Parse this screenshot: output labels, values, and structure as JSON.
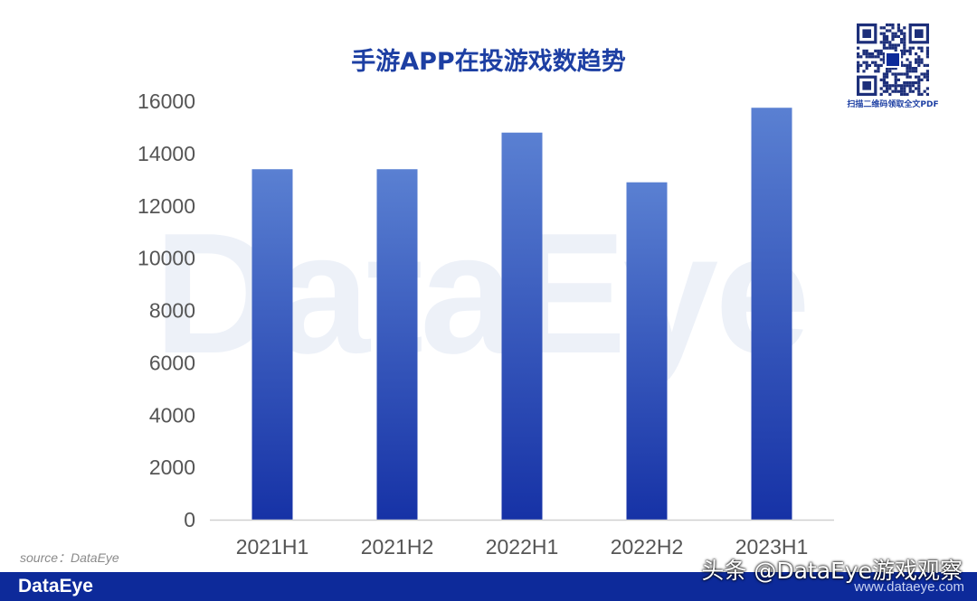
{
  "watermark_text": "DataEye",
  "qr": {
    "caption": "扫描二维码领取全文PDF"
  },
  "source_note": "source：DataEye",
  "footer": {
    "brand": "DataEye",
    "url": "www.dataeye.com"
  },
  "overlay_credit": "头条 @DataEye游戏观察",
  "colors": {
    "bar_top": "#5a80d2",
    "bar_bottom": "#1632a6",
    "title": "#1d3fa3",
    "footer_bg": "#0d2a9a"
  },
  "chart_data": {
    "type": "bar",
    "title": "手游APP在投游戏数趋势",
    "categories": [
      "2021H1",
      "2021H2",
      "2022H1",
      "2022H2",
      "2023H1"
    ],
    "values": [
      13400,
      13400,
      14800,
      12900,
      15750
    ],
    "ylim": [
      0,
      16000
    ],
    "yticks": [
      0,
      2000,
      4000,
      6000,
      8000,
      10000,
      12000,
      14000,
      16000
    ],
    "xlabel": "",
    "ylabel": "",
    "grid": false,
    "legend": "none"
  }
}
